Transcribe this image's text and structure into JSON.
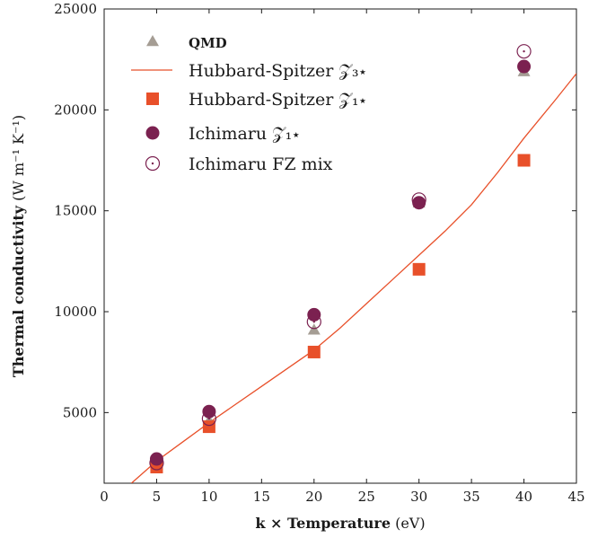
{
  "chart_data": {
    "type": "scatter",
    "xlabel_bold": "k × Temperature",
    "xlabel_unit": "(eV)",
    "ylabel_bold": "Thermal conductivity",
    "ylabel_unit": "(W m⁻¹ K⁻¹)",
    "xlim": [
      0,
      45
    ],
    "ylim": [
      1500,
      25000
    ],
    "xticks": [
      0,
      5,
      10,
      15,
      20,
      25,
      30,
      35,
      40,
      45
    ],
    "yticks": [
      5000,
      10000,
      15000,
      20000,
      25000
    ],
    "legend_position": "top-left",
    "series": [
      {
        "name": "QMD",
        "kind": "marker",
        "marker": "triangle",
        "color": "#a59d94",
        "x": [
          5,
          10,
          20,
          30,
          40
        ],
        "y": [
          2300,
          4600,
          9100,
          15400,
          21900
        ]
      },
      {
        "name": "Hubbard-Spitzer 𝒵₃⋆",
        "kind": "line",
        "color": "#e8502a",
        "x": [
          2.6,
          5,
          7.5,
          10,
          12.5,
          15,
          17.5,
          20,
          22.5,
          25,
          27.5,
          30,
          32.5,
          35,
          37.5,
          40,
          43,
          45
        ],
        "y": [
          1500,
          2600,
          3550,
          4500,
          5400,
          6300,
          7200,
          8100,
          9200,
          10400,
          11600,
          12800,
          14000,
          15300,
          16900,
          18600,
          20500,
          21800
        ]
      },
      {
        "name": "Hubbard-Spitzer 𝒵₁⋆",
        "kind": "marker",
        "marker": "square",
        "color": "#e8502a",
        "x": [
          5,
          10,
          20,
          30,
          40
        ],
        "y": [
          2300,
          4300,
          8000,
          12100,
          17500
        ]
      },
      {
        "name": "Ichimaru 𝒵₁⋆",
        "kind": "marker",
        "marker": "circle-filled",
        "color": "#7b2150",
        "x": [
          5,
          10,
          20,
          30,
          40
        ],
        "y": [
          2700,
          5050,
          9850,
          15400,
          22150
        ]
      },
      {
        "name": "Ichimaru FZ mix",
        "kind": "marker",
        "marker": "circle-dot",
        "color": "#7b2150",
        "x": [
          5,
          10,
          20,
          30,
          40
        ],
        "y": [
          2500,
          4700,
          9500,
          15550,
          22900
        ]
      }
    ]
  }
}
